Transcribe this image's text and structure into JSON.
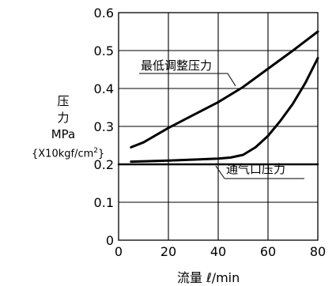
{
  "chart_data": {
    "type": "line",
    "xlabel": "流量 ℓ/min",
    "ylabel": {
      "line1": "压",
      "line2": "力",
      "unit": "MPa",
      "unit2_main": "{X10kgf/cm",
      "unit2_sup": "2",
      "unit2_end": "}"
    },
    "xlim": [
      0,
      80
    ],
    "ylim": [
      0,
      0.6
    ],
    "x_ticks": [
      "0",
      "20",
      "40",
      "60",
      "80"
    ],
    "y_ticks": [
      "0",
      "0.1",
      "0.2",
      "0.3",
      "0.4",
      "0.5",
      "0.6"
    ],
    "grid": true,
    "series": [
      {
        "name": "最低调整压力",
        "x": [
          5,
          10,
          20,
          30,
          40,
          50,
          60,
          70,
          80
        ],
        "y": [
          0.245,
          0.258,
          0.296,
          0.33,
          0.364,
          0.404,
          0.452,
          0.5,
          0.55
        ]
      },
      {
        "name": "",
        "x": [
          5,
          20,
          40,
          45,
          50,
          55,
          60,
          65,
          70,
          75,
          80
        ],
        "y": [
          0.207,
          0.21,
          0.215,
          0.218,
          0.225,
          0.245,
          0.275,
          0.315,
          0.36,
          0.415,
          0.48
        ]
      },
      {
        "name": "通气口压力",
        "x": [
          0,
          80
        ],
        "y": [
          0.2,
          0.2
        ]
      }
    ]
  }
}
